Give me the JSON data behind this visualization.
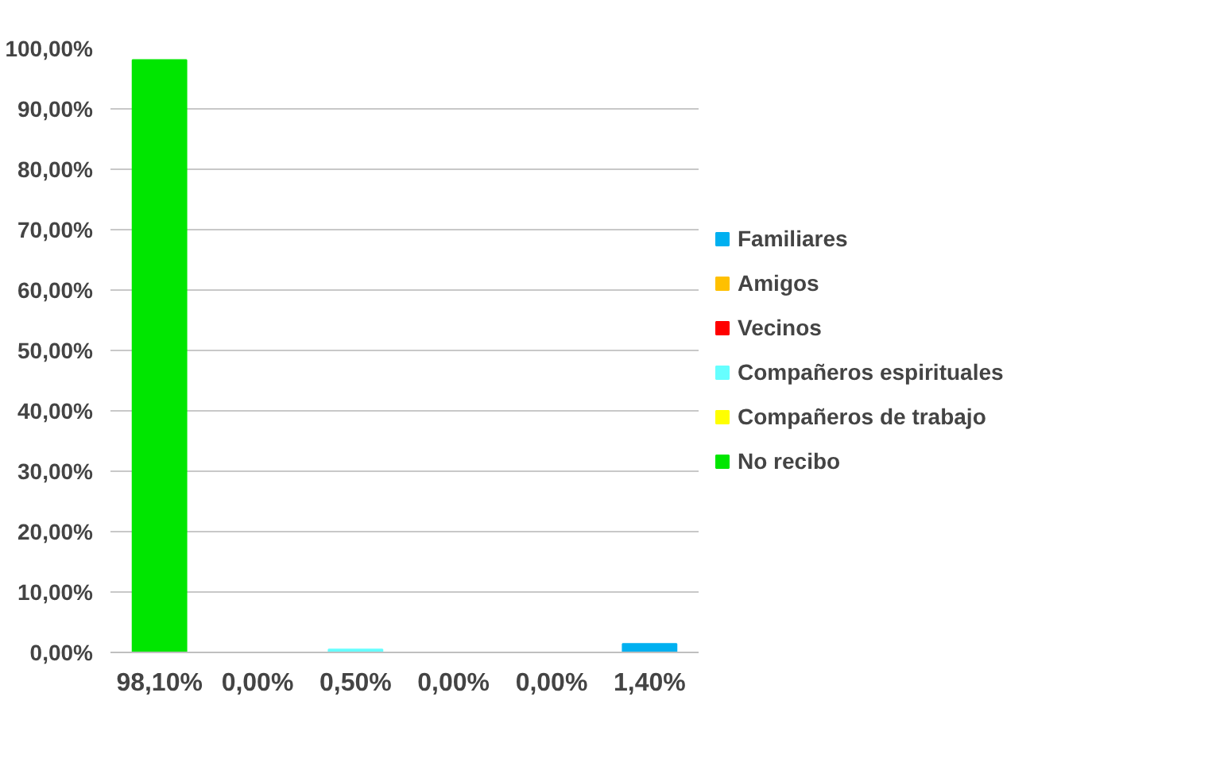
{
  "chart_data": {
    "type": "bar",
    "categories": [
      null,
      null,
      null,
      null,
      null,
      null
    ],
    "series": [
      {
        "name": "No recibo",
        "color": "#00e600",
        "values": [
          98.1,
          null,
          null,
          null,
          null,
          null
        ],
        "value_labels": [
          "98,10%",
          null,
          null,
          null,
          null,
          null
        ]
      },
      {
        "name": "Compañeros de trabajo",
        "color": "#ffff00",
        "values": [
          null,
          0,
          null,
          null,
          null,
          null
        ],
        "value_labels": [
          null,
          "0,00%",
          null,
          null,
          null,
          null
        ]
      },
      {
        "name": "Compañeros espirituales",
        "color": "#66ffff",
        "values": [
          null,
          null,
          0.5,
          null,
          null,
          null
        ],
        "value_labels": [
          null,
          null,
          "0,50%",
          null,
          null,
          null
        ]
      },
      {
        "name": "Vecinos",
        "color": "#ff0000",
        "values": [
          null,
          null,
          null,
          0,
          null,
          null
        ],
        "value_labels": [
          null,
          null,
          null,
          "0,00%",
          null,
          null
        ]
      },
      {
        "name": "Amigos",
        "color": "#ffc000",
        "values": [
          null,
          null,
          null,
          null,
          0,
          null
        ],
        "value_labels": [
          null,
          null,
          null,
          null,
          "0,00%",
          null
        ]
      },
      {
        "name": "Familiares",
        "color": "#00b0f0",
        "values": [
          null,
          null,
          null,
          null,
          null,
          1.4
        ],
        "value_labels": [
          null,
          null,
          null,
          null,
          null,
          "1,40%"
        ]
      }
    ],
    "ylim": [
      0,
      100
    ],
    "yticks": [
      {
        "value": 0,
        "label": "0,00%"
      },
      {
        "value": 10,
        "label": "10,00%"
      },
      {
        "value": 20,
        "label": "20,00%"
      },
      {
        "value": 30,
        "label": "30,00%"
      },
      {
        "value": 40,
        "label": "40,00%"
      },
      {
        "value": 50,
        "label": "50,00%"
      },
      {
        "value": 60,
        "label": "60,00%"
      },
      {
        "value": 70,
        "label": "70,00%"
      },
      {
        "value": 80,
        "label": "80,00%"
      },
      {
        "value": 90,
        "label": "90,00%"
      },
      {
        "value": 100,
        "label": "100,00%"
      }
    ],
    "grid": "y",
    "legend": "right"
  }
}
